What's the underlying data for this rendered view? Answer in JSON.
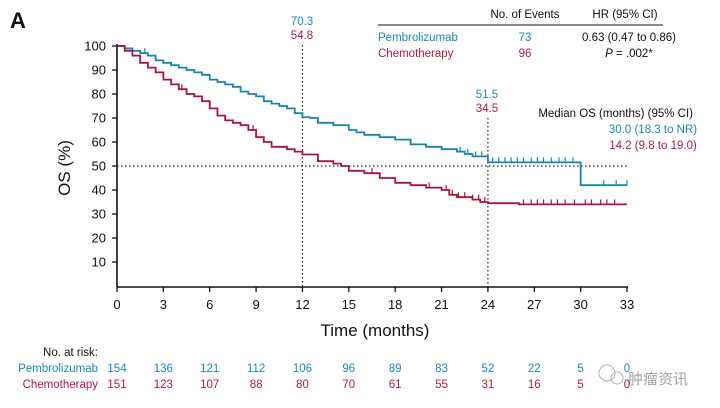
{
  "panel_label": "A",
  "colors": {
    "pembrolizumab": "#1a84ad",
    "chemotherapy": "#a8163a",
    "axis": "#111111"
  },
  "events_table": {
    "header_events": "No. of Events",
    "header_hr": "HR (95% CI)",
    "rows": [
      {
        "name": "Pembrolizumab",
        "events": "73",
        "stat": "0.63 (0.47 to 0.86)"
      },
      {
        "name": "Chemotherapy",
        "events": "96",
        "stat_p_label": "P",
        "stat": " = .002*"
      }
    ]
  },
  "landmarks": [
    {
      "time": 12,
      "pembro": "70.3",
      "chemo": "54.8"
    },
    {
      "time": 24,
      "pembro": "51.5",
      "chemo": "34.5"
    }
  ],
  "median_box": {
    "title": "Median OS (months) (95% CI)",
    "pembro": "30.0 (18.3 to NR)",
    "chemo": "14.2 (9.8 to 19.0)"
  },
  "risk_table": {
    "title": "No. at risk:",
    "rows": [
      {
        "name": "Pembrolizumab",
        "values": [
          "154",
          "136",
          "121",
          "112",
          "106",
          "96",
          "89",
          "83",
          "52",
          "22",
          "5",
          "0"
        ]
      },
      {
        "name": "Chemotherapy",
        "values": [
          "151",
          "123",
          "107",
          "88",
          "80",
          "70",
          "61",
          "55",
          "31",
          "16",
          "5",
          "0"
        ]
      }
    ]
  },
  "watermark": "肿瘤资讯",
  "chart_data": {
    "type": "line",
    "subtype": "kaplan-meier",
    "title": "",
    "xlabel": "Time (months)",
    "ylabel": "OS (%)",
    "xlim": [
      0,
      33
    ],
    "ylim": [
      0,
      100
    ],
    "xticks": [
      0,
      3,
      6,
      9,
      12,
      15,
      18,
      21,
      24,
      27,
      30,
      33
    ],
    "yticks": [
      10,
      20,
      30,
      40,
      50,
      60,
      70,
      80,
      90,
      100
    ],
    "reference_lines": {
      "horizontal": [
        50
      ],
      "vertical": [
        12,
        24
      ]
    },
    "grid": false,
    "legend": "top-right",
    "series": [
      {
        "name": "Pembrolizumab",
        "x": [
          0,
          0.5,
          1,
          1.5,
          2,
          2.5,
          3,
          3.5,
          4,
          4.5,
          5,
          5.5,
          6,
          6.5,
          7,
          7.5,
          8,
          8.5,
          9,
          9.5,
          10,
          10.5,
          11,
          11.5,
          12,
          12.5,
          13,
          14,
          15,
          15.5,
          16,
          17,
          18,
          19,
          20,
          21,
          22,
          22.5,
          23,
          24,
          30,
          33
        ],
        "y": [
          100,
          99,
          98,
          97,
          96,
          94,
          93,
          92,
          91,
          90,
          89,
          88,
          86,
          85,
          84,
          83,
          81,
          80,
          79,
          77,
          76,
          75,
          74,
          72,
          70.3,
          70,
          68,
          67,
          65,
          64,
          63,
          62,
          61,
          59,
          58,
          57,
          56,
          55,
          54,
          51.5,
          42,
          42
        ],
        "censor_x": [
          1.8,
          2.5,
          22.2,
          22.7,
          23.2,
          23.6,
          24.3,
          24.7,
          25.1,
          25.5,
          25.9,
          26.3,
          26.8,
          27.2,
          27.6,
          28.1,
          28.6,
          29.0,
          29.5,
          30,
          31.5,
          32.3,
          33
        ]
      },
      {
        "name": "Chemotherapy",
        "x": [
          0,
          0.5,
          1,
          1.5,
          2,
          2.5,
          3,
          3.5,
          4,
          4.5,
          5,
          5.5,
          6,
          6.5,
          7,
          7.5,
          8,
          8.5,
          9,
          9.5,
          10,
          11,
          11.5,
          12,
          13,
          14,
          14.5,
          15,
          16,
          17,
          18,
          19,
          20,
          21,
          21.5,
          22,
          23,
          23.5,
          24,
          26,
          33
        ],
        "y": [
          100,
          98,
          96,
          93,
          91,
          89,
          86,
          84,
          82,
          80,
          79,
          77,
          74,
          71,
          69,
          68,
          67,
          65,
          62,
          60,
          58,
          57,
          56,
          54.8,
          52,
          51,
          50,
          48,
          47,
          45,
          43,
          42,
          41,
          40,
          38,
          37,
          36,
          35,
          34.5,
          34,
          34
        ],
        "censor_x": [
          4.2,
          8.8,
          16.5,
          20.2,
          21.3,
          21.7,
          22.1,
          22.5,
          23.0,
          23.4,
          23.8,
          26.3,
          26.8,
          27.2,
          27.6,
          28.1,
          28.5,
          29.0,
          29.6,
          30.3,
          30.7,
          31.3,
          31.7,
          32.2
        ]
      }
    ]
  }
}
